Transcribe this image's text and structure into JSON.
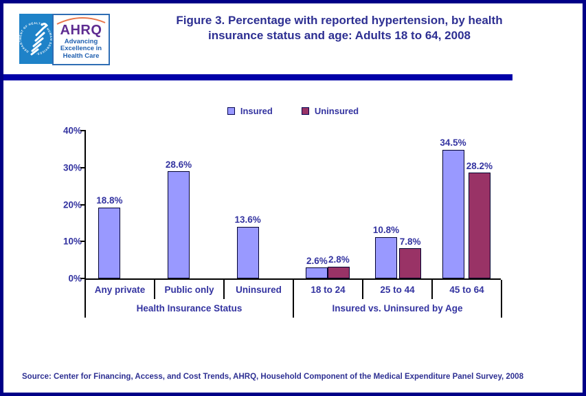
{
  "header": {
    "title_lines": [
      "Figure 3. Percentage with reported hypertension, by health",
      "insurance status and age: Adults 18 to 64, 2008"
    ],
    "hhs_logo_text": "DEPARTMENT OF HEALTH & HUMAN SERVICES·USA",
    "ahrq_logo": {
      "acronym": "AHRQ",
      "tagline_lines": [
        "Advancing",
        "Excellence in",
        "Health Care"
      ]
    }
  },
  "chart_data": {
    "type": "bar",
    "title": "Figure 3. Percentage with reported hypertension, by health insurance status and age: Adults 18 to 64, 2008",
    "ylim": [
      0,
      40
    ],
    "ytick_labels": [
      "0%",
      "10%",
      "20%",
      "30%",
      "40%"
    ],
    "grid": false,
    "legend_position": "top",
    "categories": [
      "Any private",
      "Public only",
      "Uninsured",
      "18 to 24",
      "25 to 44",
      "45 to 64"
    ],
    "series": [
      {
        "name": "Insured",
        "color": "#9999FF",
        "values": [
          18.8,
          28.6,
          13.6,
          2.6,
          10.8,
          34.5
        ]
      },
      {
        "name": "Uninsured",
        "color": "#993366",
        "values": [
          null,
          null,
          null,
          2.8,
          7.8,
          28.2
        ]
      }
    ],
    "value_labels": [
      "18.8%",
      "28.6%",
      "13.6%",
      "2.6%",
      "2.8%",
      "10.8%",
      "7.8%",
      "34.5%",
      "28.2%"
    ],
    "groups": [
      {
        "label": "Health Insurance Status",
        "category_indexes": [
          0,
          1,
          2
        ]
      },
      {
        "label": "Insured vs. Uninsured by Age",
        "category_indexes": [
          3,
          4,
          5
        ]
      }
    ]
  },
  "footer": {
    "source": "Source: Center for Financing, Access, and Cost Trends, AHRQ, Household Component of the Medical Expenditure Panel Survey, 2008"
  },
  "colors": {
    "page_border": "#000087",
    "divider_bar": "#0101A8",
    "title_text": "#2D2F92",
    "chart_text": "#3333A0",
    "insured_fill": "#9999FF",
    "uninsured_fill": "#993366"
  }
}
